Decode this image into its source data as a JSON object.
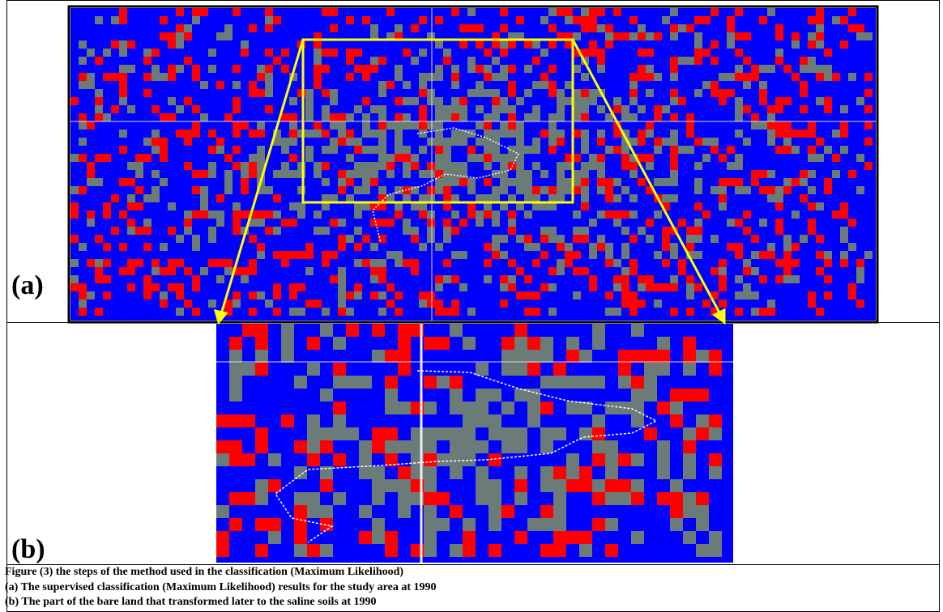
{
  "labels": {
    "a": "(a)",
    "b": "(b)"
  },
  "caption": {
    "title": "Figure (3) the steps of the method used in the classification (Maximum Likelihood)",
    "line_a": "(a)  The supervised classification (Maximum Likelihood) results for the study area at 1990",
    "line_b": "(b) The part of the bare land that transformed later to the saline soils at 1990"
  }
}
